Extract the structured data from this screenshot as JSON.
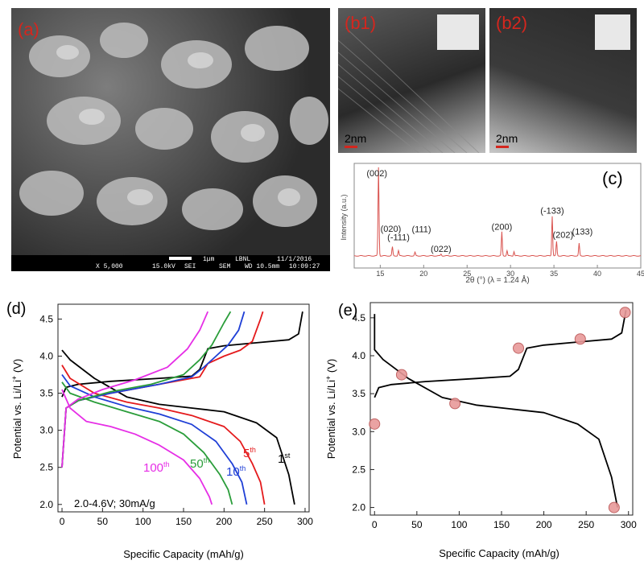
{
  "panels": {
    "a": {
      "label": "(a)",
      "scale_bar": "1μm",
      "instrument": "LBNL",
      "date": "11/1/2016",
      "mag": "X 5,000",
      "voltage": "15.0kV",
      "detector": "SEI",
      "mode": "SEM",
      "wd": "WD 10.5mm",
      "time": "10:09:27"
    },
    "b1": {
      "label": "(b1)",
      "scale_bar": "2nm"
    },
    "b2": {
      "label": "(b2)",
      "scale_bar": "2nm"
    },
    "c": {
      "label": "(c)"
    },
    "d": {
      "label": "(d)",
      "conditions": "2.0-4.6V; 30mA/g"
    },
    "e": {
      "label": "(e)"
    }
  },
  "chart_data": [
    {
      "id": "c",
      "type": "line",
      "xlabel": "2θ (°) (λ = 1.24 Å)",
      "ylabel": "Intensity (a.u.)",
      "xlim": [
        12,
        45
      ],
      "xticks": [
        15,
        20,
        25,
        30,
        35,
        40,
        45
      ],
      "color": "#d9534f",
      "peaks": [
        {
          "x": 14.8,
          "h": 1.0,
          "label": "(002)"
        },
        {
          "x": 16.4,
          "h": 0.1,
          "label": "(020)"
        },
        {
          "x": 17.1,
          "h": 0.06,
          "label": "(-111)"
        },
        {
          "x": 19.0,
          "h": 0.04,
          "label": "(111)"
        },
        {
          "x": 22.0,
          "h": 0.02,
          "label": "(022)"
        },
        {
          "x": 29.0,
          "h": 0.27,
          "label": "(200)"
        },
        {
          "x": 29.6,
          "h": 0.06,
          "label": ""
        },
        {
          "x": 30.4,
          "h": 0.05,
          "label": ""
        },
        {
          "x": 34.8,
          "h": 0.45,
          "label": "(-133)"
        },
        {
          "x": 35.3,
          "h": 0.16,
          "label": "(202)"
        },
        {
          "x": 37.9,
          "h": 0.14,
          "label": "(133)"
        }
      ]
    },
    {
      "id": "d",
      "type": "line",
      "xlabel": "Specific Capacity (mAh/g)",
      "ylabel": "Potential vs. Li/Li+ (V)",
      "xlim": [
        -5,
        305
      ],
      "ylim": [
        1.9,
        4.7
      ],
      "xticks": [
        0,
        50,
        100,
        150,
        200,
        250,
        300
      ],
      "yticks": [
        2.0,
        2.5,
        3.0,
        3.5,
        4.0,
        4.5
      ],
      "series": [
        {
          "name": "1st",
          "color": "#000000",
          "charge": [
            [
              0,
              3.45
            ],
            [
              5,
              3.58
            ],
            [
              20,
              3.62
            ],
            [
              60,
              3.66
            ],
            [
              120,
              3.7
            ],
            [
              160,
              3.73
            ],
            [
              170,
              3.82
            ],
            [
              180,
              4.1
            ],
            [
              200,
              4.14
            ],
            [
              240,
              4.18
            ],
            [
              280,
              4.22
            ],
            [
              292,
              4.3
            ],
            [
              297,
              4.6
            ]
          ],
          "discharge": [
            [
              0,
              4.08
            ],
            [
              10,
              3.95
            ],
            [
              40,
              3.7
            ],
            [
              80,
              3.45
            ],
            [
              120,
              3.35
            ],
            [
              160,
              3.3
            ],
            [
              200,
              3.25
            ],
            [
              240,
              3.1
            ],
            [
              265,
              2.9
            ],
            [
              280,
              2.4
            ],
            [
              287,
              2.0
            ]
          ]
        },
        {
          "name": "5th",
          "color": "#e41a1c",
          "charge": [
            [
              0,
              2.5
            ],
            [
              5,
              3.3
            ],
            [
              20,
              3.4
            ],
            [
              60,
              3.5
            ],
            [
              120,
              3.62
            ],
            [
              170,
              3.72
            ],
            [
              180,
              3.9
            ],
            [
              200,
              4.0
            ],
            [
              220,
              4.08
            ],
            [
              235,
              4.2
            ],
            [
              245,
              4.5
            ],
            [
              248,
              4.6
            ]
          ],
          "discharge": [
            [
              0,
              3.88
            ],
            [
              10,
              3.7
            ],
            [
              40,
              3.5
            ],
            [
              80,
              3.38
            ],
            [
              120,
              3.3
            ],
            [
              160,
              3.2
            ],
            [
              200,
              3.05
            ],
            [
              220,
              2.85
            ],
            [
              235,
              2.55
            ],
            [
              245,
              2.3
            ],
            [
              250,
              2.0
            ]
          ]
        },
        {
          "name": "10th",
          "color": "#1f3fd6",
          "charge": [
            [
              0,
              2.5
            ],
            [
              5,
              3.3
            ],
            [
              20,
              3.4
            ],
            [
              60,
              3.5
            ],
            [
              120,
              3.62
            ],
            [
              160,
              3.72
            ],
            [
              175,
              3.85
            ],
            [
              190,
              4.0
            ],
            [
              205,
              4.15
            ],
            [
              218,
              4.35
            ],
            [
              225,
              4.6
            ]
          ],
          "discharge": [
            [
              0,
              3.75
            ],
            [
              10,
              3.6
            ],
            [
              40,
              3.45
            ],
            [
              80,
              3.32
            ],
            [
              120,
              3.22
            ],
            [
              160,
              3.08
            ],
            [
              190,
              2.85
            ],
            [
              210,
              2.55
            ],
            [
              222,
              2.3
            ],
            [
              228,
              2.0
            ]
          ]
        },
        {
          "name": "50th",
          "color": "#2a9d3a",
          "charge": [
            [
              0,
              2.5
            ],
            [
              5,
              3.3
            ],
            [
              20,
              3.4
            ],
            [
              60,
              3.52
            ],
            [
              110,
              3.62
            ],
            [
              150,
              3.75
            ],
            [
              170,
              3.95
            ],
            [
              185,
              4.15
            ],
            [
              200,
              4.45
            ],
            [
              208,
              4.6
            ]
          ],
          "discharge": [
            [
              0,
              3.65
            ],
            [
              10,
              3.5
            ],
            [
              40,
              3.38
            ],
            [
              80,
              3.25
            ],
            [
              120,
              3.12
            ],
            [
              150,
              2.95
            ],
            [
              175,
              2.7
            ],
            [
              195,
              2.4
            ],
            [
              205,
              2.2
            ],
            [
              210,
              2.0
            ]
          ]
        },
        {
          "name": "100th",
          "color": "#e62ee6",
          "charge": [
            [
              0,
              2.5
            ],
            [
              5,
              3.3
            ],
            [
              20,
              3.42
            ],
            [
              50,
              3.55
            ],
            [
              90,
              3.68
            ],
            [
              130,
              3.85
            ],
            [
              155,
              4.1
            ],
            [
              170,
              4.35
            ],
            [
              180,
              4.6
            ]
          ],
          "discharge": [
            [
              0,
              3.55
            ],
            [
              10,
              3.3
            ],
            [
              30,
              3.12
            ],
            [
              60,
              3.05
            ],
            [
              90,
              2.95
            ],
            [
              120,
              2.8
            ],
            [
              150,
              2.6
            ],
            [
              170,
              2.35
            ],
            [
              182,
              2.1
            ],
            [
              185,
              2.0
            ]
          ]
        }
      ]
    },
    {
      "id": "e",
      "type": "line",
      "xlabel": "Specific Capacity (mAh/g)",
      "ylabel": "Potential vs. Li/Li+ (V)",
      "xlim": [
        -5,
        305
      ],
      "ylim": [
        1.9,
        4.7
      ],
      "xticks": [
        0,
        50,
        100,
        150,
        200,
        250,
        300
      ],
      "yticks": [
        2.0,
        2.5,
        3.0,
        3.5,
        4.0,
        4.5
      ],
      "series": [
        {
          "name": "",
          "color": "#000000",
          "charge": [
            [
              0,
              3.45
            ],
            [
              5,
              3.58
            ],
            [
              20,
              3.62
            ],
            [
              60,
              3.66
            ],
            [
              120,
              3.7
            ],
            [
              160,
              3.73
            ],
            [
              170,
              3.82
            ],
            [
              180,
              4.1
            ],
            [
              200,
              4.14
            ],
            [
              240,
              4.18
            ],
            [
              280,
              4.22
            ],
            [
              292,
              4.3
            ],
            [
              297,
              4.6
            ]
          ],
          "discharge": [
            [
              0,
              4.55
            ],
            [
              0,
              4.08
            ],
            [
              10,
              3.95
            ],
            [
              40,
              3.7
            ],
            [
              80,
              3.45
            ],
            [
              120,
              3.35
            ],
            [
              160,
              3.3
            ],
            [
              200,
              3.25
            ],
            [
              240,
              3.1
            ],
            [
              265,
              2.9
            ],
            [
              280,
              2.4
            ],
            [
              287,
              2.0
            ]
          ]
        }
      ],
      "markers": [
        [
          0,
          3.1
        ],
        [
          32,
          3.75
        ],
        [
          95,
          3.37
        ],
        [
          170,
          4.1
        ],
        [
          243,
          4.22
        ],
        [
          296,
          4.57
        ],
        [
          283,
          2.0
        ]
      ]
    }
  ]
}
